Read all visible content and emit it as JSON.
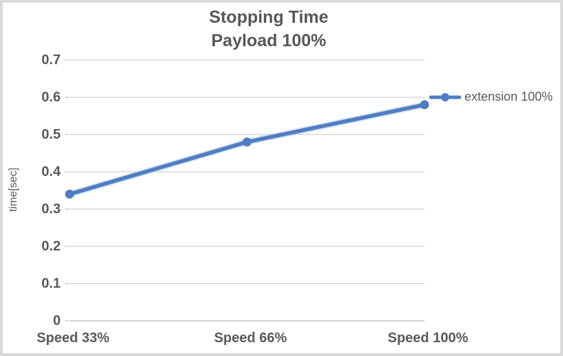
{
  "chart": {
    "title_lines": [
      "Stopping Time",
      "Payload 100%"
    ]
  },
  "chart_data": {
    "type": "line",
    "title": "Stopping Time Payload 100%",
    "categories": [
      "Speed 33%",
      "Speed 66%",
      "Speed 100%"
    ],
    "series": [
      {
        "name": "extension 100%",
        "values": [
          0.34,
          0.48,
          0.58
        ]
      }
    ],
    "xlabel": "",
    "ylabel": "time[sec]",
    "ylim": [
      0,
      0.7
    ],
    "yticks": [
      0,
      0.1,
      0.2,
      0.3,
      0.4,
      0.5,
      0.6,
      0.7
    ],
    "ytick_labels": [
      "0",
      "0.1",
      "0.2",
      "0.3",
      "0.4",
      "0.5",
      "0.6",
      "0.7"
    ],
    "grid": true,
    "legend_position": "right",
    "marker": "circle",
    "colors": {
      "series_line": "#4e7dc2",
      "series_halo": "#a9c3e3",
      "gridline": "#d9d9d9",
      "axis_line": "#c6c6c6",
      "text": "#595959",
      "title": "#575757",
      "frame_border": "#d9d9d9"
    }
  }
}
